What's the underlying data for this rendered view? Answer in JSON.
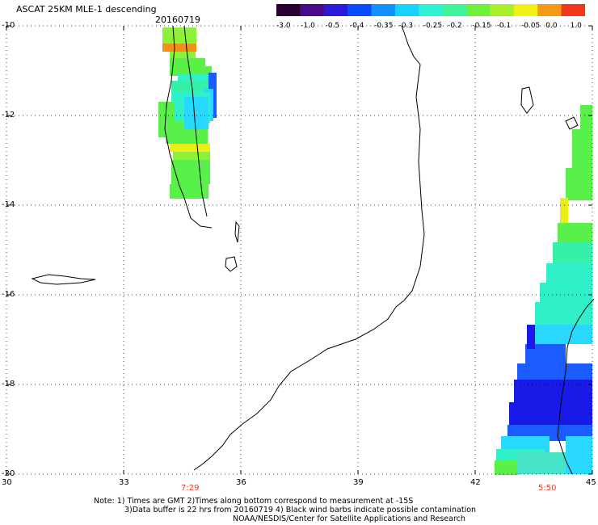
{
  "header": {
    "title": "ASCAT 25KM MLE-1 descending",
    "date": "20160719"
  },
  "colorbar": {
    "labels": [
      "-3.0",
      "-1.0",
      "-0.5",
      "-0.4",
      "-0.35",
      "-0.3",
      "-0.25",
      "-0.2",
      "-0.15",
      "-0.1",
      "-0.05",
      "0.0",
      "1.0"
    ],
    "colors": [
      "#2a0033",
      "#4b0a8a",
      "#2a1bd8",
      "#0a4cff",
      "#1292ff",
      "#19d3ff",
      "#2ef2d6",
      "#3ff39a",
      "#6ff03a",
      "#a8f02a",
      "#f1ef14",
      "#f59a16",
      "#f2361c"
    ]
  },
  "axes": {
    "y_labels": [
      "-10",
      "-12",
      "-14",
      "-16",
      "-18",
      "-20"
    ],
    "x_labels": [
      "30",
      "33",
      "36",
      "39",
      "42",
      "45"
    ],
    "lat_range": [
      -20,
      -10
    ],
    "lon_range": [
      30,
      45
    ]
  },
  "pass_times": [
    "7:29",
    "5:50"
  ],
  "notes": [
    "Note: 1) Times are GMT 2)Times along bottom correspond to measurement at -15S",
    "3)Data buffer is 22 hrs from 20160719 4) Black wind barbs indicate possible contamination",
    "NOAA/NESDIS/Center for Satellite Applications and Research"
  ]
}
